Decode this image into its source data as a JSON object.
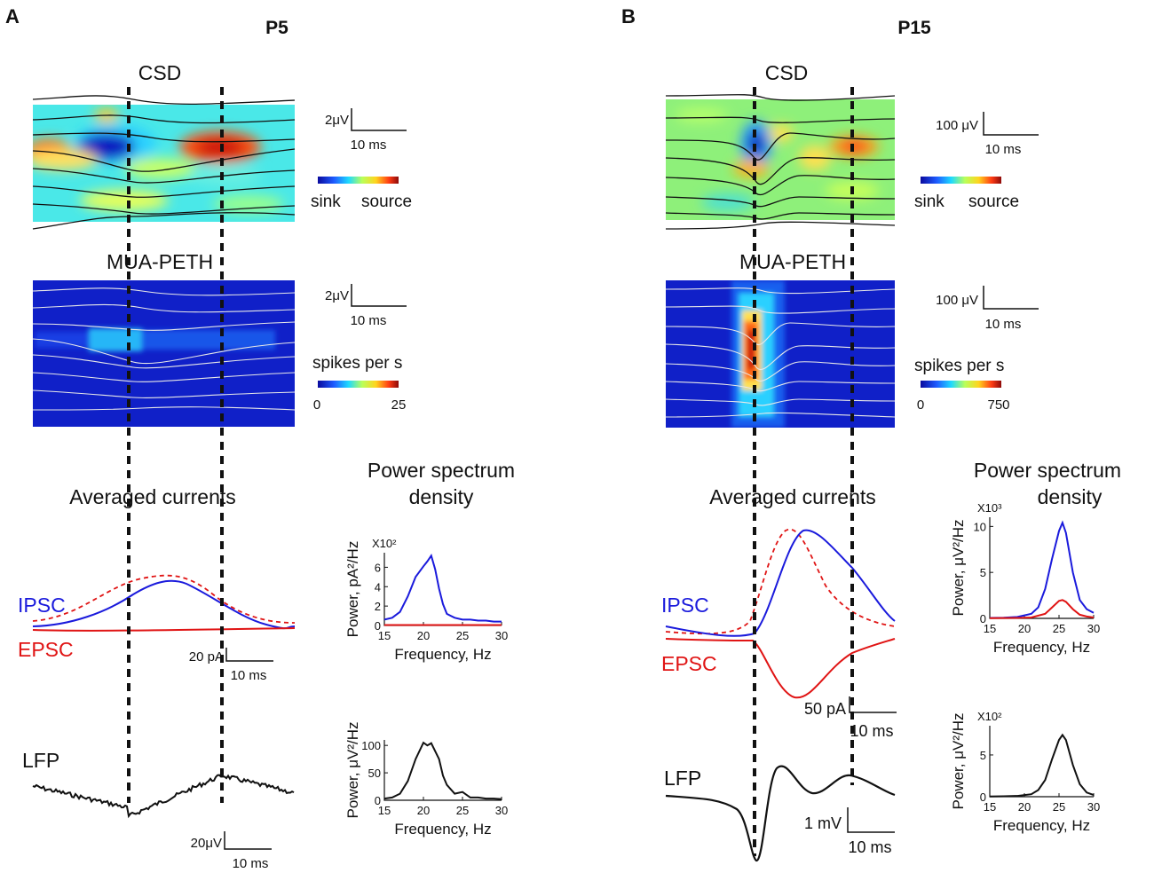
{
  "panels": [
    {
      "letter": "A",
      "age": "P5",
      "csd": {
        "title": "CSD",
        "scalebar_v": "2μV",
        "scalebar_t": "10 ms",
        "cbar_left": "sink",
        "cbar_right": "source"
      },
      "mua": {
        "title": "MUA-PETH",
        "scalebar_v": "2μV",
        "scalebar_t": "10 ms",
        "cbar_label": "spikes per s",
        "cbar_min": "0",
        "cbar_max": "25"
      },
      "currents": {
        "title": "Averaged currents",
        "ipsc_label": "IPSC",
        "epsc_label": "EPSC",
        "scalebar_v": "20 pA",
        "scalebar_t": "10 ms"
      },
      "lfp": {
        "label": "LFP",
        "scalebar_v": "20μV",
        "scalebar_t": "10 ms"
      },
      "psd_title": [
        "Power spectrum",
        "density"
      ]
    },
    {
      "letter": "B",
      "age": "P15",
      "csd": {
        "title": "CSD",
        "scalebar_v": "100 μV",
        "scalebar_t": "10 ms",
        "cbar_left": "sink",
        "cbar_right": "source"
      },
      "mua": {
        "title": "MUA-PETH",
        "scalebar_v": "100 μV",
        "scalebar_t": "10 ms",
        "cbar_label": "spikes per s",
        "cbar_min": "0",
        "cbar_max": "750"
      },
      "currents": {
        "title": "Averaged currents",
        "ipsc_label": "IPSC",
        "epsc_label": "EPSC",
        "scalebar_v": "50 pA",
        "scalebar_t": "10 ms"
      },
      "lfp": {
        "label": "LFP",
        "scalebar_v": "1 mV",
        "scalebar_t": "10 ms"
      },
      "psd_title": [
        "Power spectrum",
        "density"
      ]
    }
  ],
  "colors": {
    "ipsc": "#1a1adc",
    "epsc": "#e01414",
    "lfp": "#111111",
    "sink": "#1010b0",
    "source": "#c81010"
  },
  "chart_data": [
    {
      "type": "line",
      "title": "",
      "panel": "A",
      "xlabel": "Frequency, Hz",
      "ylabel": "Power, pA²/Hz",
      "multiplier": "X10²",
      "xlim": [
        15,
        30
      ],
      "ylim": [
        0,
        7.5
      ],
      "xticks": [
        15,
        20,
        25,
        30
      ],
      "yticks": [
        0,
        2,
        4,
        6
      ],
      "series": [
        {
          "name": "IPSC",
          "color": "#1a1adc",
          "x": [
            15,
            16,
            17,
            18,
            19,
            20,
            20.5,
            21,
            21.5,
            22,
            22.5,
            23,
            24,
            25,
            26,
            27,
            28,
            29,
            30
          ],
          "values": [
            0.6,
            0.8,
            1.4,
            3.0,
            5.0,
            6.1,
            6.6,
            7.2,
            5.8,
            3.8,
            2.2,
            1.2,
            0.8,
            0.6,
            0.6,
            0.5,
            0.5,
            0.4,
            0.4
          ]
        },
        {
          "name": "EPSC",
          "color": "#e01414",
          "x": [
            15,
            20,
            25,
            30
          ],
          "values": [
            0.05,
            0.05,
            0.05,
            0.05
          ]
        }
      ]
    },
    {
      "type": "line",
      "title": "",
      "panel": "A",
      "xlabel": "Frequency, Hz",
      "ylabel": "Power, μV²/Hz",
      "multiplier": "",
      "xlim": [
        15,
        30
      ],
      "ylim": [
        0,
        110
      ],
      "xticks": [
        15,
        20,
        25,
        30
      ],
      "yticks": [
        0,
        50,
        100
      ],
      "series": [
        {
          "name": "LFP",
          "color": "#111111",
          "x": [
            15,
            16,
            17,
            18,
            19,
            20,
            20.5,
            21,
            22,
            22.5,
            23,
            24,
            25,
            26,
            27,
            28,
            29,
            30
          ],
          "values": [
            3,
            5,
            12,
            35,
            75,
            105,
            100,
            104,
            75,
            45,
            28,
            12,
            15,
            5,
            5,
            3,
            3,
            2
          ]
        }
      ]
    },
    {
      "type": "line",
      "title": "",
      "panel": "B",
      "xlabel": "Frequency, Hz",
      "ylabel": "Power, μV²/Hz",
      "multiplier": "X10³",
      "xlim": [
        15,
        30
      ],
      "ylim": [
        0,
        11
      ],
      "xticks": [
        15,
        20,
        25,
        30
      ],
      "yticks": [
        0,
        5,
        10
      ],
      "series": [
        {
          "name": "IPSC",
          "color": "#1a1adc",
          "x": [
            15,
            17,
            19,
            21,
            22,
            23,
            24,
            25,
            25.5,
            26,
            27,
            28,
            29,
            30
          ],
          "values": [
            0.05,
            0.08,
            0.15,
            0.5,
            1.2,
            3.2,
            6.5,
            9.5,
            10.4,
            9.3,
            5.0,
            2.0,
            1.0,
            0.6
          ]
        },
        {
          "name": "EPSC",
          "color": "#e01414",
          "x": [
            15,
            19,
            21,
            23,
            24,
            25,
            25.5,
            26,
            27,
            28,
            29,
            30
          ],
          "values": [
            0.02,
            0.05,
            0.1,
            0.5,
            1.2,
            1.9,
            2.0,
            1.8,
            1.0,
            0.4,
            0.2,
            0.1
          ]
        }
      ]
    },
    {
      "type": "line",
      "title": "",
      "panel": "B",
      "xlabel": "Frequency, Hz",
      "ylabel": "Power, μV²/Hz",
      "multiplier": "X10²",
      "xlim": [
        15,
        30
      ],
      "ylim": [
        0,
        8.5
      ],
      "xticks": [
        15,
        20,
        25,
        30
      ],
      "yticks": [
        0,
        5
      ],
      "series": [
        {
          "name": "LFP",
          "color": "#111111",
          "x": [
            15,
            17,
            19,
            21,
            22,
            23,
            24,
            25,
            25.5,
            26,
            27,
            28,
            29,
            30
          ],
          "values": [
            0.02,
            0.05,
            0.1,
            0.3,
            0.8,
            2.0,
            4.5,
            6.8,
            7.4,
            6.8,
            3.8,
            1.5,
            0.5,
            0.2
          ]
        }
      ]
    }
  ]
}
